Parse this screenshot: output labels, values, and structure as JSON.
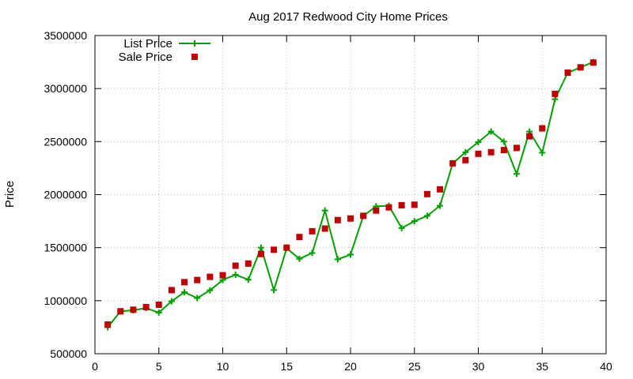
{
  "chart_data": {
    "type": "line",
    "title": "Aug 2017 Redwood City Home Prices",
    "xlabel": "",
    "ylabel": "Price",
    "xlim": [
      0,
      40
    ],
    "ylim": [
      500000,
      3500000
    ],
    "xticks": [
      0,
      5,
      10,
      15,
      20,
      25,
      30,
      35,
      40
    ],
    "yticks": [
      500000,
      1000000,
      1500000,
      2000000,
      2500000,
      3000000,
      3500000
    ],
    "xtick_labels": [
      "0",
      "5",
      "10",
      "15",
      "20",
      "25",
      "30",
      "35",
      "40"
    ],
    "ytick_labels": [
      "500000",
      "1000000",
      "1500000",
      "2000000",
      "2500000",
      "3000000",
      "3500000"
    ],
    "grid": true,
    "legend_position": "top-left",
    "series": [
      {
        "name": "List Price",
        "style": "line-with-plus-markers",
        "color": "#00a000",
        "x": [
          1,
          2,
          3,
          4,
          5,
          6,
          7,
          8,
          9,
          10,
          11,
          12,
          13,
          14,
          15,
          16,
          17,
          18,
          19,
          20,
          21,
          22,
          23,
          24,
          25,
          26,
          27,
          28,
          29,
          30,
          31,
          32,
          33,
          34,
          35,
          36,
          37,
          38,
          39
        ],
        "values": [
          750000,
          900000,
          910000,
          930000,
          888000,
          995000,
          1080000,
          1025000,
          1098000,
          1195000,
          1245000,
          1198000,
          1500000,
          1100000,
          1495000,
          1395000,
          1450000,
          1850000,
          1390000,
          1435000,
          1800000,
          1890000,
          1895000,
          1685000,
          1750000,
          1800000,
          1895000,
          2295000,
          2400000,
          2495000,
          2595000,
          2500000,
          2195000,
          2595000,
          2395000,
          2900000,
          3150000,
          3200000,
          3250000
        ]
      },
      {
        "name": "Sale Price",
        "style": "square-markers",
        "color": "#c00000",
        "x": [
          1,
          2,
          3,
          4,
          5,
          6,
          7,
          8,
          9,
          10,
          11,
          12,
          13,
          14,
          15,
          16,
          17,
          18,
          19,
          20,
          21,
          22,
          23,
          24,
          25,
          26,
          27,
          28,
          29,
          30,
          31,
          32,
          33,
          34,
          35,
          36,
          37,
          38,
          39
        ],
        "values": [
          775000,
          900000,
          915000,
          940000,
          962000,
          1100000,
          1175000,
          1195000,
          1225000,
          1240000,
          1330000,
          1350000,
          1440000,
          1480000,
          1500000,
          1600000,
          1655000,
          1680000,
          1760000,
          1775000,
          1800000,
          1850000,
          1880000,
          1900000,
          1905000,
          2005000,
          2050000,
          2295000,
          2325000,
          2385000,
          2400000,
          2420000,
          2440000,
          2550000,
          2625000,
          2950000,
          3150000,
          3200000,
          3245000
        ]
      }
    ]
  }
}
